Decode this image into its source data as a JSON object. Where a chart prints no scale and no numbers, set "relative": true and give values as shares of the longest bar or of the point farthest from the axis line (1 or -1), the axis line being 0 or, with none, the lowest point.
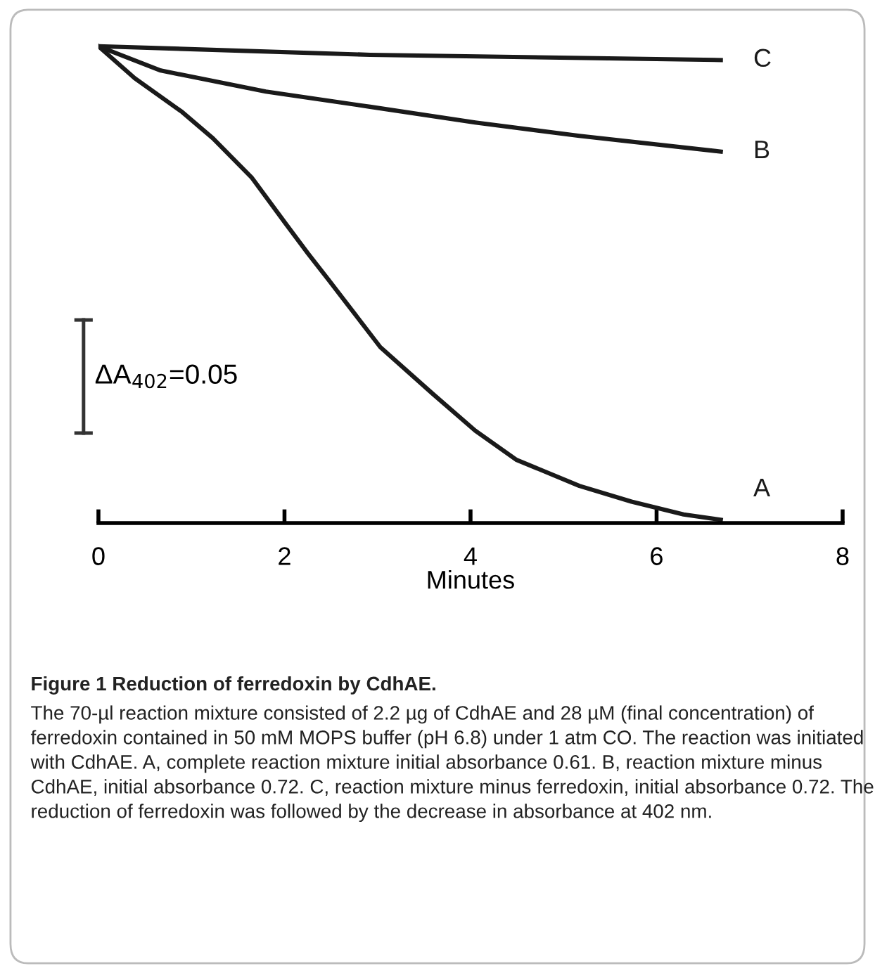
{
  "chart_data": {
    "type": "line",
    "relative": true,
    "title": "Figure 1 Reduction of ferredoxin by CdhAE.",
    "xlabel": "Minutes",
    "xlim": [
      0,
      8
    ],
    "xticks": [
      0,
      2,
      4,
      6,
      8
    ],
    "grid": false,
    "marker": "none",
    "line_style": "solid",
    "series": [
      {
        "name": "A",
        "color": "#1a1a1a",
        "x": [
          0,
          0.39,
          0.9,
          1.23,
          1.65,
          2.02,
          2.25,
          2.47,
          2.64,
          3.03,
          3.6,
          4.05,
          4.49,
          5.17,
          5.73,
          6.29,
          6.69
        ],
        "values": [
          1.0,
          0.933,
          0.862,
          0.807,
          0.724,
          0.626,
          0.566,
          0.511,
          0.468,
          0.369,
          0.27,
          0.194,
          0.133,
          0.078,
          0.045,
          0.018,
          0.007
        ]
      },
      {
        "name": "B",
        "color": "#1a1a1a",
        "x": [
          0,
          0.67,
          1.8,
          2.92,
          4.05,
          5.17,
          6.69
        ],
        "values": [
          1.0,
          0.949,
          0.905,
          0.873,
          0.84,
          0.812,
          0.779
        ]
      },
      {
        "name": "C",
        "color": "#1a1a1a",
        "x": [
          0,
          2.92,
          6.69
        ],
        "values": [
          1.0,
          0.982,
          0.971
        ]
      }
    ],
    "annotations": [
      "ΔA$_{402}$=0.05",
      "The 70-µl reaction mixture consisted of 2.2 µg of CdhAE and 28 µM (final concentration) of ferredoxin contained in 50 mM MOPS buffer (pH 6.8) under 1 atm CO. The reaction was initiated with CdhAE. A, complete reaction mixture initial absorbance 0.61. B, reaction mixture minus CdhAE, initial absorbance 0.72. C, reaction mixture minus ferredoxin, initial absorbance 0.72. The reduction of ferredoxin was followed by the decrease in absorbance at 402 nm."
    ]
  }
}
